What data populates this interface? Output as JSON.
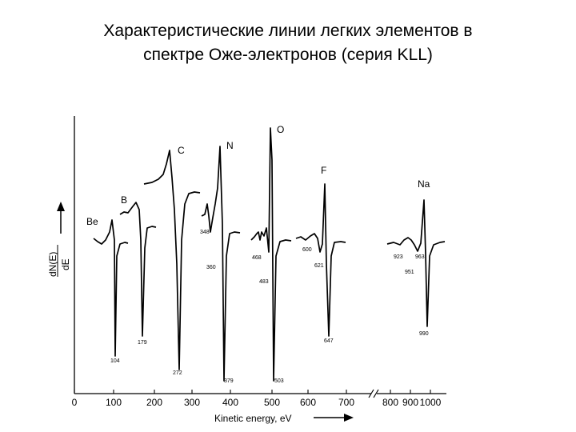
{
  "slide": {
    "title_line1": "Характеристические линии легких элементов в",
    "title_line2": "спектре Оже-электронов (серия KLL)"
  },
  "chart_data": {
    "type": "line",
    "xlabel": "Kinetic energy, eV",
    "ylabel_numerator": "dN(E)",
    "ylabel_denominator": "dE",
    "x_ticks": [
      "0",
      "100",
      "200",
      "300",
      "400",
      "500",
      "600",
      "700",
      "800",
      "900",
      "1000"
    ],
    "x_break_between": [
      "700",
      "800"
    ],
    "series": [
      {
        "name": "Be",
        "min_energy": 104,
        "labels": [
          "104"
        ]
      },
      {
        "name": "B",
        "min_energy": 179,
        "labels": [
          "179"
        ]
      },
      {
        "name": "C",
        "min_energy": 272,
        "labels": [
          "272"
        ]
      },
      {
        "name": "N",
        "min_energy": 379,
        "labels": [
          "348",
          "360",
          "379"
        ]
      },
      {
        "name": "O",
        "min_energy": 503,
        "labels": [
          "468",
          "483",
          "503"
        ]
      },
      {
        "name": "F",
        "min_energy": 647,
        "labels": [
          "600",
          "621",
          "647"
        ]
      },
      {
        "name": "Na",
        "min_energy": 990,
        "labels": [
          "923",
          "963",
          "951",
          "990"
        ]
      }
    ]
  }
}
